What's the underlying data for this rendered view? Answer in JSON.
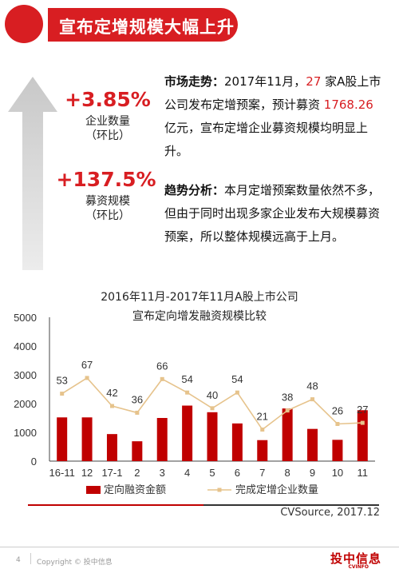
{
  "header": {
    "title": "宣布定增规模大幅上升"
  },
  "stats": [
    {
      "value": "+3.85%",
      "label1": "企业数量",
      "label2": "（环比）"
    },
    {
      "value": "+137.5%",
      "label1": "募资规模",
      "label2": "（环比）"
    }
  ],
  "market": {
    "heading": "市场走势：",
    "t1": "2017年11月，",
    "count": "27",
    "t2": "家A股上市公司发布定增预案，预计募资",
    "amount": "1768.26",
    "t3": "亿元，宣布定增企业募资规模均明显上升。"
  },
  "trend": {
    "heading": "趋势分析：",
    "text": "本月定增预案数量依然不多，但由于同时出现多家企业发布大规模募资预案，所以整体规模远高于上月。"
  },
  "chart_data": {
    "type": "bar",
    "title": "2016年11月-2017年11月A股上市公司",
    "subtitle": "宣布定向增发融资规模比较",
    "categories": [
      "16-11",
      "12",
      "17-1",
      "2",
      "3",
      "4",
      "5",
      "6",
      "7",
      "8",
      "9",
      "10",
      "11"
    ],
    "ylim": [
      0,
      5000
    ],
    "yticks": [
      "0",
      "1000",
      "2000",
      "3000",
      "4000",
      "5000"
    ],
    "series": [
      {
        "name": "定向融资金额",
        "type": "bar",
        "color": "#c00000",
        "values": [
          1520,
          1520,
          940,
          690,
          1500,
          1930,
          1700,
          1310,
          730,
          1830,
          1120,
          740,
          1770
        ]
      },
      {
        "name": "完成定增企业数量",
        "type": "line",
        "color": "#e6c38c",
        "values": [
          53,
          67,
          42,
          36,
          66,
          54,
          40,
          54,
          21,
          38,
          48,
          26,
          27
        ]
      }
    ],
    "legend_position": "bottom",
    "grid": false
  },
  "source": "CVSource, 2017.12",
  "footer": {
    "page": "4",
    "copyright": "Copyright © 投中信息",
    "logo": "投中信息",
    "logo_sub": "CVINFO"
  }
}
